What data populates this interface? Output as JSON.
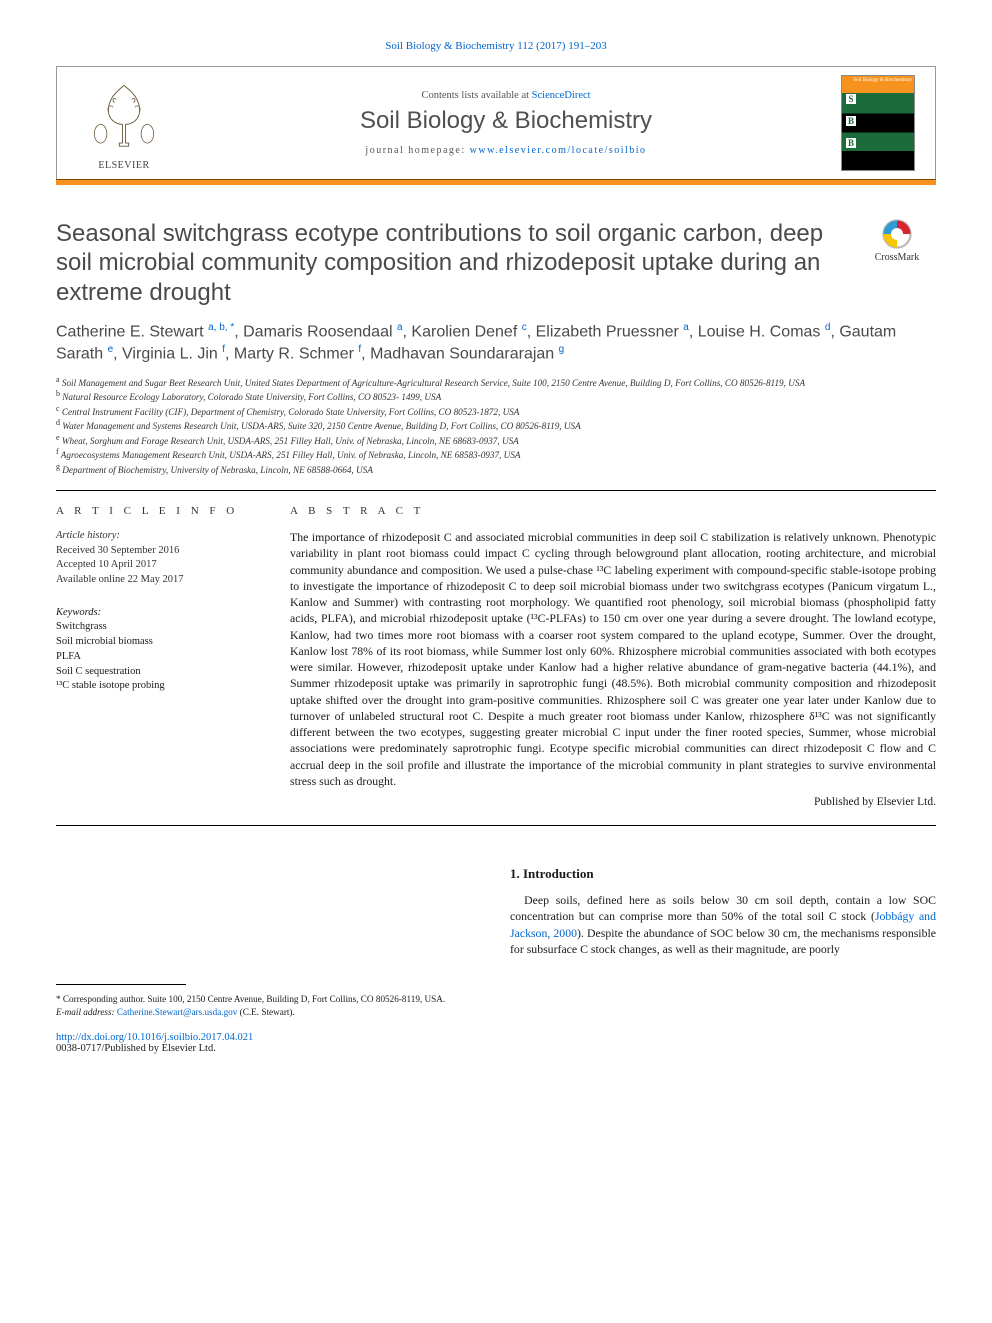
{
  "citation": {
    "text": "Soil Biology & Biochemistry 112 (2017) 191–203",
    "href": "#"
  },
  "header": {
    "contents_prefix": "Contents lists available at ",
    "contents_link_text": "ScienceDirect",
    "journal_name": "Soil Biology & Biochemistry",
    "homepage_prefix": "journal homepage: ",
    "homepage_link_text": "www.elsevier.com/locate/soilbio",
    "publisher_logo_label": "ELSEVIER",
    "cover_label": "Soil Biology & Biochemistry"
  },
  "orange_bar_color": "#f6931e",
  "crossmark_label": "CrossMark",
  "article": {
    "title": "Seasonal switchgrass ecotype contributions to soil organic carbon, deep soil microbial community composition and rhizodeposit uptake during an extreme drought",
    "authors_html": "Catherine E. Stewart <sup><a href='#'>a</a>, <a href='#'>b</a>, *</sup>, Damaris Roosendaal <sup><a href='#'>a</a></sup>, Karolien Denef <sup><a href='#'>c</a></sup>, Elizabeth Pruessner <sup><a href='#'>a</a></sup>, Louise H. Comas <sup><a href='#'>d</a></sup>, Gautam Sarath <sup><a href='#'>e</a></sup>, Virginia L. Jin <sup><a href='#'>f</a></sup>, Marty R. Schmer <sup><a href='#'>f</a></sup>, Madhavan Soundararajan <sup><a href='#'>g</a></sup>",
    "affiliations": [
      {
        "key": "a",
        "text": "Soil Management and Sugar Beet Research Unit, United States Department of Agriculture-Agricultural Research Service, Suite 100, 2150 Centre Avenue, Building D, Fort Collins, CO 80526-8119, USA"
      },
      {
        "key": "b",
        "text": "Natural Resource Ecology Laboratory, Colorado State University, Fort Collins, CO 80523- 1499, USA"
      },
      {
        "key": "c",
        "text": "Central Instrument Facility (CIF), Department of Chemistry, Colorado State University, Fort Collins, CO 80523-1872, USA"
      },
      {
        "key": "d",
        "text": "Water Management and Systems Research Unit, USDA-ARS, Suite 320, 2150 Centre Avenue, Building D, Fort Collins, CO 80526-8119, USA"
      },
      {
        "key": "e",
        "text": "Wheat, Sorghum and Forage Research Unit, USDA-ARS, 251 Filley Hall, Univ. of Nebraska, Lincoln, NE 68683-0937, USA"
      },
      {
        "key": "f",
        "text": "Agroecosystems Management Research Unit, USDA-ARS, 251 Filley Hall, Univ. of Nebraska, Lincoln, NE 68583-0937, USA"
      },
      {
        "key": "g",
        "text": "Department of Biochemistry, University of Nebraska, Lincoln, NE 68588-0664, USA"
      }
    ]
  },
  "article_info": {
    "heading": "A R T I C L E  I N F O",
    "history_label": "Article history:",
    "history_lines": [
      "Received 30 September 2016",
      "Accepted 10 April 2017",
      "Available online 22 May 2017"
    ],
    "keywords_label": "Keywords:",
    "keywords": [
      "Switchgrass",
      "Soil microbial biomass",
      "PLFA",
      "Soil C sequestration",
      "¹³C stable isotope probing"
    ]
  },
  "abstract": {
    "heading": "A B S T R A C T",
    "text": "The importance of rhizodeposit C and associated microbial communities in deep soil C stabilization is relatively unknown. Phenotypic variability in plant root biomass could impact C cycling through belowground plant allocation, rooting architecture, and microbial community abundance and composition. We used a pulse-chase ¹³C labeling experiment with compound-specific stable-isotope probing to investigate the importance of rhizodeposit C to deep soil microbial biomass under two switchgrass ecotypes (Panicum virgatum L., Kanlow and Summer) with contrasting root morphology. We quantified root phenology, soil microbial biomass (phospholipid fatty acids, PLFA), and microbial rhizodeposit uptake (¹³C-PLFAs) to 150 cm over one year during a severe drought. The lowland ecotype, Kanlow, had two times more root biomass with a coarser root system compared to the upland ecotype, Summer. Over the drought, Kanlow lost 78% of its root biomass, while Summer lost only 60%. Rhizosphere microbial communities associated with both ecotypes were similar. However, rhizodeposit uptake under Kanlow had a higher relative abundance of gram-negative bacteria (44.1%), and Summer rhizodeposit uptake was primarily in saprotrophic fungi (48.5%). Both microbial community composition and rhizodeposit uptake shifted over the drought into gram-positive communities. Rhizosphere soil C was greater one year later under Kanlow due to turnover of unlabeled structural root C. Despite a much greater root biomass under Kanlow, rhizosphere δ¹³C was not significantly different between the two ecotypes, suggesting greater microbial C input under the finer rooted species, Summer, whose microbial associations were predominately saprotrophic fungi. Ecotype specific microbial communities can direct rhizodeposit C flow and C accrual deep in the soil profile and illustrate the importance of the microbial community in plant strategies to survive environmental stress such as drought.",
    "publisher_line": "Published by Elsevier Ltd."
  },
  "intro": {
    "heading": "1. Introduction",
    "paragraph": "Deep soils, defined here as soils below 30 cm soil depth, contain a low SOC concentration but can comprise more than 50% of the total soil C stock (",
    "ref_text": "Jobbágy and Jackson, 2000",
    "paragraph_tail": "). Despite the abundance of SOC below 30 cm, the mechanisms responsible for subsurface C stock changes, as well as their magnitude, are poorly"
  },
  "footnote": {
    "corresponding_label": "* Corresponding author. Suite 100, 2150 Centre Avenue, Building D, Fort Collins, CO 80526-8119, USA.",
    "email_label": "E-mail address: ",
    "email_text": "Catherine.Stewart@ars.usda.gov",
    "email_tail": " (C.E. Stewart)."
  },
  "doi": {
    "link_text": "http://dx.doi.org/10.1016/j.soilbio.2017.04.021",
    "issn_line": "0038-0717/Published by Elsevier Ltd."
  },
  "colors": {
    "link": "#0066cc",
    "orange": "#f6931e",
    "heading_gray": "#4a4a4a"
  }
}
